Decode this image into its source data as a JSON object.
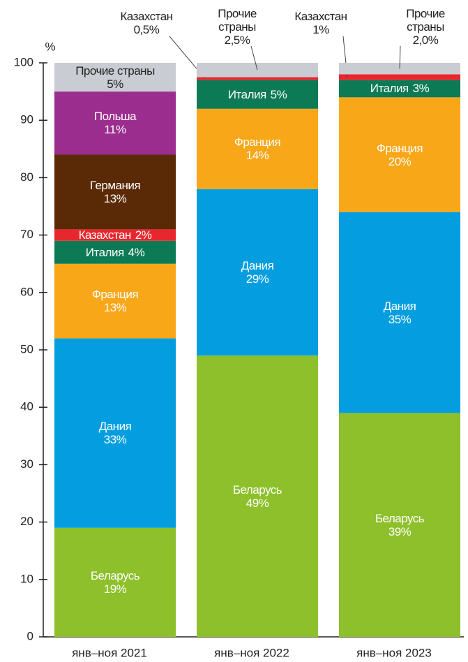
{
  "chart_data": {
    "type": "stacked_bar",
    "y_unit_label": "%",
    "categories": [
      "янв–ноя 2021",
      "янв–ноя 2022",
      "янв–ноя 2023"
    ],
    "series": [
      {
        "name": "Беларусь",
        "color": "#8dc02a",
        "values": [
          19,
          49,
          39
        ],
        "value_labels": [
          "19%",
          "49%",
          "39%"
        ]
      },
      {
        "name": "Дания",
        "color": "#049ee0",
        "values": [
          33,
          29,
          35
        ],
        "value_labels": [
          "33%",
          "29%",
          "35%"
        ]
      },
      {
        "name": "Франция",
        "color": "#f8a718",
        "values": [
          13,
          14,
          20
        ],
        "value_labels": [
          "13%",
          "14%",
          "20%"
        ]
      },
      {
        "name": "Италия",
        "color": "#0c7a55",
        "values": [
          4,
          5,
          3
        ],
        "value_labels": [
          "4%",
          "5%",
          "3%"
        ]
      },
      {
        "name": "Казахстан",
        "color": "#e8262e",
        "values": [
          2,
          0.5,
          1
        ],
        "value_labels": [
          "2%",
          "0,5%",
          "1%"
        ]
      },
      {
        "name": "Германия",
        "color": "#5a2a06",
        "values": [
          13,
          null,
          null
        ],
        "value_labels": [
          "13%",
          null,
          null
        ]
      },
      {
        "name": "Польша",
        "color": "#9b2d8e",
        "values": [
          11,
          null,
          null
        ],
        "value_labels": [
          "11%",
          null,
          null
        ]
      },
      {
        "name": "Прочие страны",
        "color": "#c9ccd3",
        "values": [
          5,
          2.5,
          2
        ],
        "value_labels": [
          "5%",
          "2,5%",
          "2,0%"
        ]
      }
    ],
    "ylim": [
      0,
      100
    ],
    "yticks": [
      0,
      10,
      20,
      30,
      40,
      50,
      60,
      70,
      80,
      90,
      100
    ],
    "grid": false
  }
}
